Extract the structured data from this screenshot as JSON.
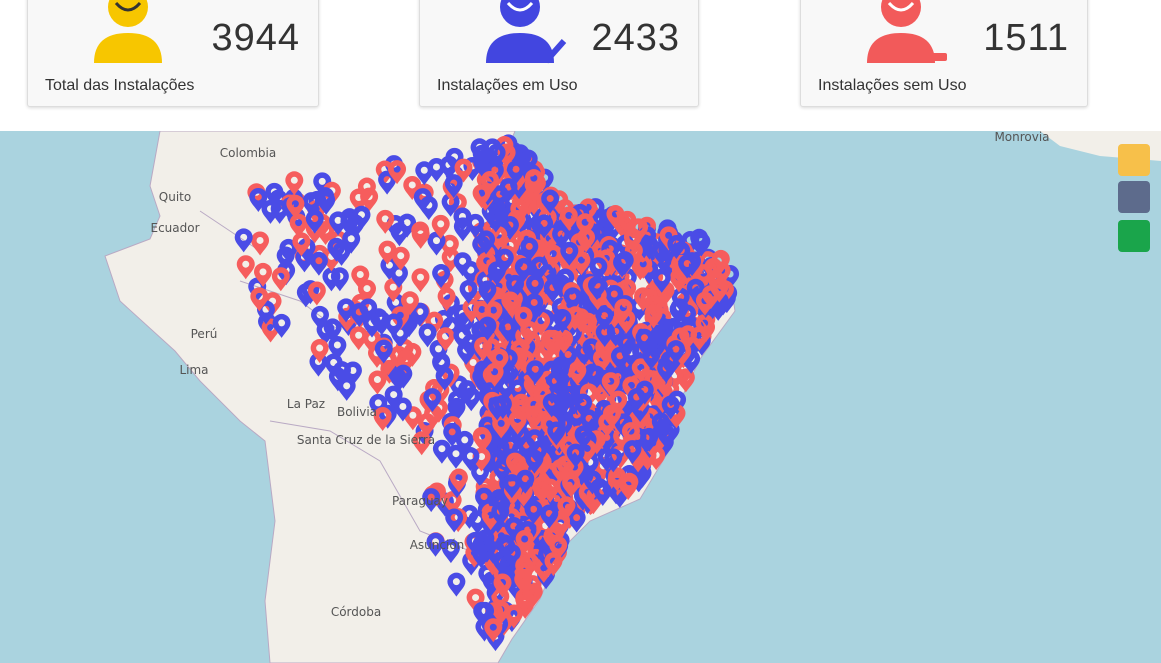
{
  "cards": [
    {
      "value": "3944",
      "label": "Total das Instalações"
    },
    {
      "value": "2433",
      "label": "Instalações em Uso"
    },
    {
      "value": "1511",
      "label": "Instalações sem Uso"
    }
  ],
  "map": {
    "places": [
      "Colombia",
      "Quito",
      "Ecuador",
      "Perú",
      "Lima",
      "La Paz",
      "Bolivia",
      "Santa Cruz de la Sierra",
      "Paraguay",
      "Asunción",
      "Córdoba",
      "Monrovia"
    ]
  }
}
